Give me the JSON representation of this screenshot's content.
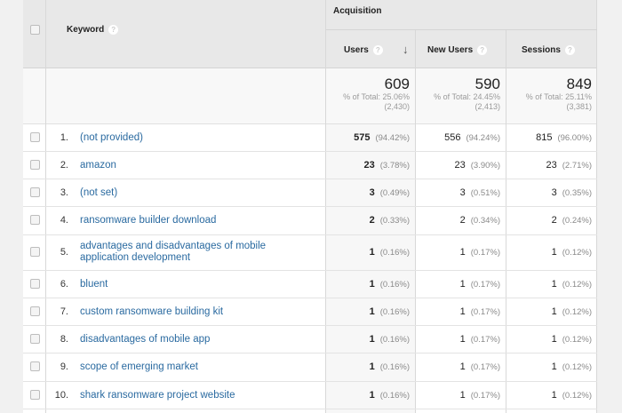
{
  "header": {
    "keyword_label": "Keyword",
    "group_label": "Acquisition",
    "columns": [
      {
        "label": "Users",
        "sorted": true,
        "sort_icon": "arrow-down-icon"
      },
      {
        "label": "New Users"
      },
      {
        "label": "Sessions"
      }
    ],
    "help_icon": "?"
  },
  "totals": {
    "users": {
      "value": "609",
      "pct": "% of Total: 25.06%",
      "total": "(2,430)"
    },
    "new_users": {
      "value": "590",
      "pct": "% of Total: 24.45%",
      "total": "(2,413)"
    },
    "sessions": {
      "value": "849",
      "pct": "% of Total: 25.11%",
      "total": "(3,381)"
    }
  },
  "rows": [
    {
      "n": "1.",
      "keyword": "(not provided)",
      "users": "575",
      "users_pct": "(94.42%)",
      "new_users": "556",
      "new_users_pct": "(94.24%)",
      "sessions": "815",
      "sessions_pct": "(96.00%)"
    },
    {
      "n": "2.",
      "keyword": "amazon",
      "users": "23",
      "users_pct": "(3.78%)",
      "new_users": "23",
      "new_users_pct": "(3.90%)",
      "sessions": "23",
      "sessions_pct": "(2.71%)"
    },
    {
      "n": "3.",
      "keyword": "(not set)",
      "users": "3",
      "users_pct": "(0.49%)",
      "new_users": "3",
      "new_users_pct": "(0.51%)",
      "sessions": "3",
      "sessions_pct": "(0.35%)"
    },
    {
      "n": "4.",
      "keyword": "ransomware builder download",
      "users": "2",
      "users_pct": "(0.33%)",
      "new_users": "2",
      "new_users_pct": "(0.34%)",
      "sessions": "2",
      "sessions_pct": "(0.24%)"
    },
    {
      "n": "5.",
      "keyword": "advantages and disadvantages of mobile application development",
      "users": "1",
      "users_pct": "(0.16%)",
      "new_users": "1",
      "new_users_pct": "(0.17%)",
      "sessions": "1",
      "sessions_pct": "(0.12%)"
    },
    {
      "n": "6.",
      "keyword": "bluent",
      "users": "1",
      "users_pct": "(0.16%)",
      "new_users": "1",
      "new_users_pct": "(0.17%)",
      "sessions": "1",
      "sessions_pct": "(0.12%)"
    },
    {
      "n": "7.",
      "keyword": "custom ransomware building kit",
      "users": "1",
      "users_pct": "(0.16%)",
      "new_users": "1",
      "new_users_pct": "(0.17%)",
      "sessions": "1",
      "sessions_pct": "(0.12%)"
    },
    {
      "n": "8.",
      "keyword": "disadvantages of mobile app",
      "users": "1",
      "users_pct": "(0.16%)",
      "new_users": "1",
      "new_users_pct": "(0.17%)",
      "sessions": "1",
      "sessions_pct": "(0.12%)"
    },
    {
      "n": "9.",
      "keyword": "scope of emerging market",
      "users": "1",
      "users_pct": "(0.16%)",
      "new_users": "1",
      "new_users_pct": "(0.17%)",
      "sessions": "1",
      "sessions_pct": "(0.12%)"
    },
    {
      "n": "10.",
      "keyword": "shark ransomware project website",
      "users": "1",
      "users_pct": "(0.16%)",
      "new_users": "1",
      "new_users_pct": "(0.17%)",
      "sessions": "1",
      "sessions_pct": "(0.12%)"
    }
  ],
  "colors": {
    "link": "#2a6aa0",
    "header_bg": "#e8e8e8"
  }
}
